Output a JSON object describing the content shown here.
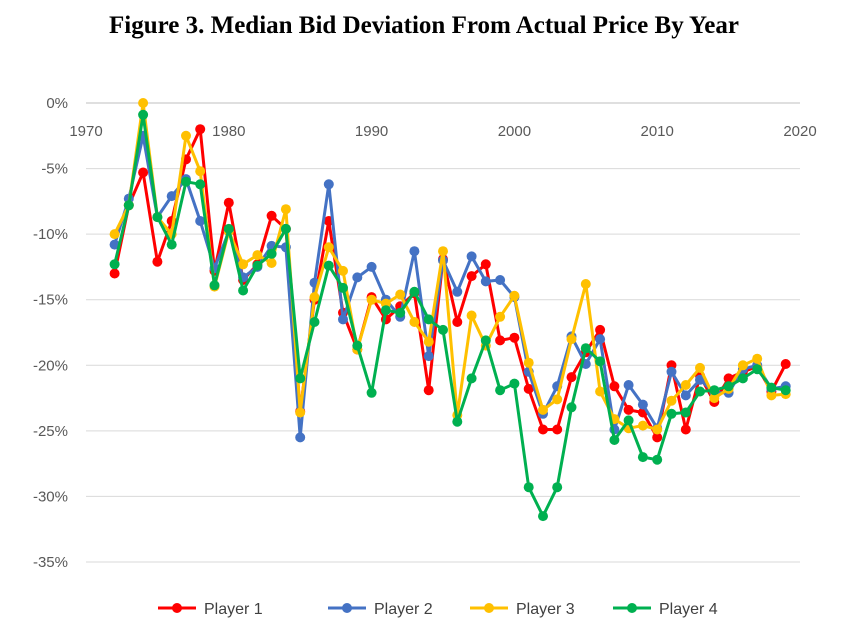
{
  "title": "Figure 3. Median Bid Deviation From Actual Price By Year",
  "chart_data": {
    "type": "line",
    "title": "Figure 3. Median Bid Deviation From Actual Price By Year",
    "xlabel": "",
    "ylabel": "",
    "xlim": [
      1970,
      2020
    ],
    "ylim": [
      -35,
      0
    ],
    "x_ticks": [
      "1970",
      "1980",
      "1990",
      "2000",
      "2010",
      "2020"
    ],
    "y_ticks": [
      "0%",
      "-5%",
      "-10%",
      "-15%",
      "-20%",
      "-25%",
      "-30%",
      "-35%"
    ],
    "grid": true,
    "legend_position": "bottom",
    "x": [
      1972,
      1973,
      1974,
      1975,
      1976,
      1977,
      1978,
      1979,
      1980,
      1981,
      1982,
      1983,
      1984,
      1985,
      1986,
      1987,
      1988,
      1989,
      1990,
      1991,
      1992,
      1993,
      1994,
      1995,
      1996,
      1997,
      1998,
      1999,
      2000,
      2001,
      2002,
      2003,
      2004,
      2005,
      2006,
      2007,
      2008,
      2009,
      2010,
      2011,
      2012,
      2013,
      2014,
      2015,
      2016,
      2017,
      2018,
      2019
    ],
    "series": [
      {
        "name": "Player 1",
        "color": "#ff0000",
        "values": [
          -13.0,
          -7.8,
          -5.3,
          -12.1,
          -9.0,
          -4.3,
          -2.0,
          -12.8,
          -7.6,
          -13.5,
          -12.3,
          -8.6,
          -9.6,
          -23.5,
          -15.0,
          -9.0,
          -16.0,
          -18.8,
          -14.8,
          -16.5,
          -15.5,
          -14.5,
          -21.9,
          -11.9,
          -16.7,
          -13.2,
          -12.3,
          -18.1,
          -17.9,
          -21.8,
          -24.9,
          -24.9,
          -20.9,
          -19.0,
          -17.3,
          -21.6,
          -23.4,
          -23.6,
          -25.5,
          -20.0,
          -24.9,
          -20.8,
          -22.8,
          -21.0,
          -20.5,
          -20.1,
          -22.0,
          -19.9
        ]
      },
      {
        "name": "Player 2",
        "color": "#4472c4",
        "values": [
          -10.8,
          -7.3,
          -2.5,
          -8.7,
          -7.1,
          -5.8,
          -9.0,
          -12.6,
          -9.8,
          -13.3,
          -12.5,
          -10.9,
          -11.0,
          -25.5,
          -13.7,
          -6.2,
          -16.5,
          -13.3,
          -12.5,
          -15.0,
          -16.3,
          -11.3,
          -19.3,
          -12.0,
          -14.4,
          -11.7,
          -13.6,
          -13.5,
          -14.8,
          -20.5,
          -23.7,
          -21.6,
          -17.8,
          -19.9,
          -18.0,
          -24.9,
          -21.5,
          -23.0,
          -24.8,
          -20.5,
          -22.3,
          -21.1,
          -22.1,
          -22.1,
          -20.3,
          -20.0,
          -21.8,
          -21.6
        ]
      },
      {
        "name": "Player 3",
        "color": "#ffc000",
        "values": [
          -10.0,
          -7.8,
          0.0,
          -8.7,
          -10.0,
          -2.5,
          -5.2,
          -14.0,
          -9.8,
          -12.3,
          -11.6,
          -12.2,
          -8.1,
          -23.6,
          -14.8,
          -11.0,
          -12.8,
          -18.8,
          -15.0,
          -15.3,
          -14.6,
          -16.7,
          -18.2,
          -11.3,
          -23.8,
          -16.2,
          -18.5,
          -16.3,
          -14.7,
          -19.8,
          -23.4,
          -22.6,
          -18.0,
          -13.8,
          -22.0,
          -24.1,
          -24.8,
          -24.6,
          -24.9,
          -22.7,
          -21.5,
          -20.2,
          -22.5,
          -21.8,
          -20.0,
          -19.5,
          -22.3,
          -22.2
        ]
      },
      {
        "name": "Player 4",
        "color": "#00b050",
        "values": [
          -12.3,
          -7.8,
          -0.9,
          -8.7,
          -10.8,
          -6.0,
          -6.2,
          -13.9,
          -9.6,
          -14.3,
          -12.4,
          -11.5,
          -9.6,
          -21.0,
          -16.7,
          -12.4,
          -14.1,
          -18.5,
          -22.1,
          -15.8,
          -16.0,
          -14.4,
          -16.5,
          -17.3,
          -24.3,
          -21.0,
          -18.1,
          -21.9,
          -21.4,
          -29.3,
          -31.5,
          -29.3,
          -23.2,
          -18.7,
          -19.7,
          -25.7,
          -24.2,
          -27.0,
          -27.2,
          -23.7,
          -23.6,
          -22.0,
          -21.9,
          -21.6,
          -21.0,
          -20.3,
          -21.7,
          -21.9
        ]
      }
    ]
  }
}
